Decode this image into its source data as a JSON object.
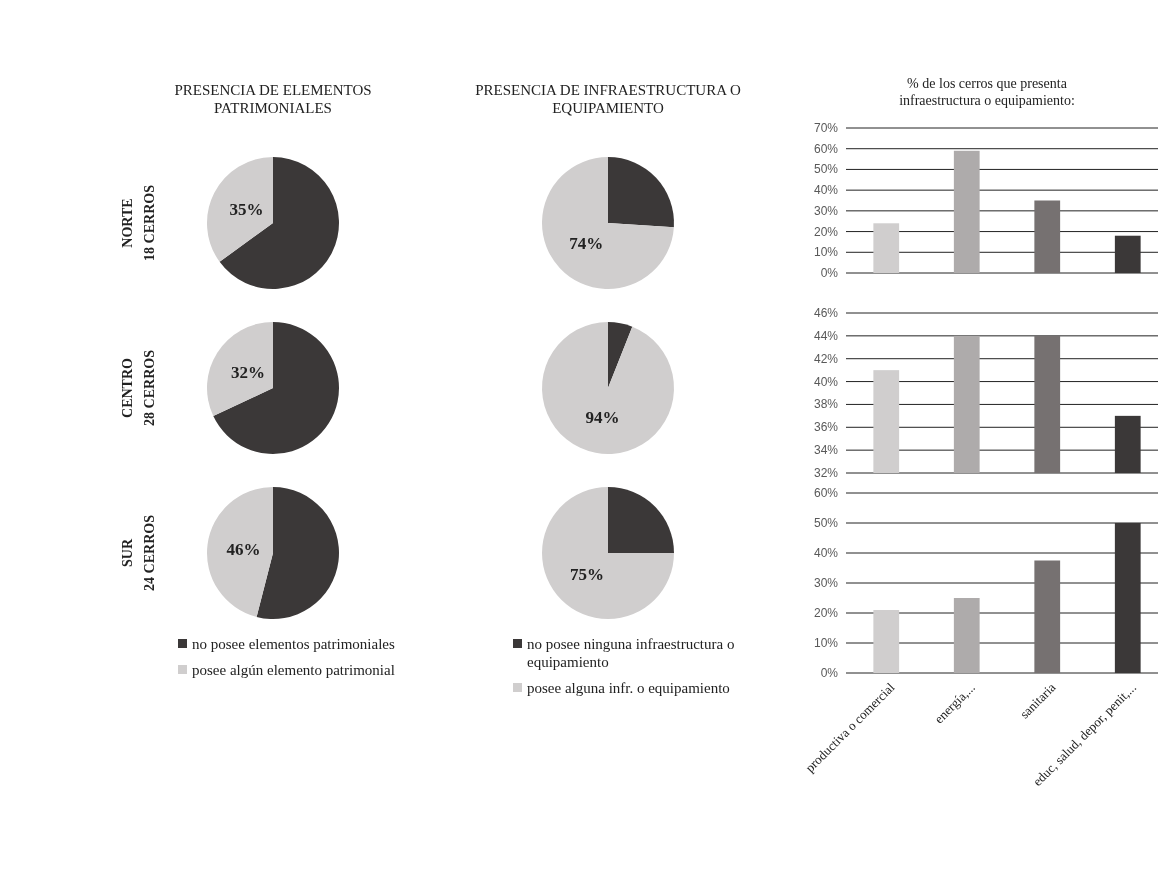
{
  "chart_data": [
    {
      "type": "pie",
      "title": "PRESENCIA DE ELEMENTOS PATRIMONIALES",
      "ylabel": "NORTE\n18 CERROS",
      "categories": [
        null,
        null
      ],
      "values": [
        65,
        35
      ],
      "colors": [
        "#3b3838",
        "#d0cece"
      ],
      "value_labels": [
        null,
        "35%"
      ],
      "legend": false
    },
    {
      "type": "pie",
      "title": "PRESENCIA DE INFRAESTRUCTURA  O EQUIPAMIENTO",
      "categories": [
        null,
        null
      ],
      "values": [
        26,
        74
      ],
      "colors": [
        "#3b3838",
        "#d0cece"
      ],
      "value_labels": [
        null,
        "74%"
      ],
      "legend": false
    },
    {
      "type": "bar",
      "title": "% de los cerros que presenta infraestructura  o equipamiento:",
      "categories": [
        null,
        null,
        null,
        null
      ],
      "values": [
        24,
        59,
        35,
        18
      ],
      "colors": [
        "#d0cece",
        "#aeabab",
        "#767171",
        "#3b3838"
      ],
      "ylim": [
        0,
        70
      ],
      "yticks": [
        {
          "value": 0,
          "label": "0%"
        },
        {
          "value": 10,
          "label": "10%"
        },
        {
          "value": 20,
          "label": "20%"
        },
        {
          "value": 30,
          "label": "30%"
        },
        {
          "value": 40,
          "label": "40%"
        },
        {
          "value": 50,
          "label": "50%"
        },
        {
          "value": 60,
          "label": "60%"
        },
        {
          "value": 70,
          "label": "70%"
        }
      ],
      "grid": "y",
      "tick_labels": "y"
    },
    {
      "type": "pie",
      "ylabel": "CENTRO\n28 CERROS",
      "categories": [
        null,
        null
      ],
      "values": [
        68,
        32
      ],
      "colors": [
        "#3b3838",
        "#d0cece"
      ],
      "value_labels": [
        null,
        "32%"
      ],
      "legend": false
    },
    {
      "type": "pie",
      "categories": [
        null,
        null
      ],
      "values": [
        6,
        94
      ],
      "colors": [
        "#3b3838",
        "#d0cece"
      ],
      "value_labels": [
        null,
        "94%"
      ],
      "legend": false
    },
    {
      "type": "bar",
      "categories": [
        null,
        null,
        null,
        null
      ],
      "values": [
        41,
        44,
        44,
        37
      ],
      "colors": [
        "#d0cece",
        "#aeabab",
        "#767171",
        "#3b3838"
      ],
      "ylim": [
        32,
        46
      ],
      "yticks": [
        {
          "value": 32,
          "label": "32%"
        },
        {
          "value": 34,
          "label": "34%"
        },
        {
          "value": 36,
          "label": "36%"
        },
        {
          "value": 38,
          "label": "38%"
        },
        {
          "value": 40,
          "label": "40%"
        },
        {
          "value": 42,
          "label": "42%"
        },
        {
          "value": 44,
          "label": "44%"
        },
        {
          "value": 46,
          "label": "46%"
        }
      ],
      "grid": "y",
      "tick_labels": "y"
    },
    {
      "type": "pie",
      "ylabel": "SUR\n24 CERROS",
      "categories": [
        "no posee elementos patrimoniales",
        "posee algún elemento patrimonial"
      ],
      "values": [
        54,
        46
      ],
      "colors": [
        "#3b3838",
        "#d0cece"
      ],
      "value_labels": [
        null,
        "46%"
      ],
      "legend": "bottom"
    },
    {
      "type": "pie",
      "categories": [
        "no posee ninguna infraestructura o equipamiento",
        "posee alguna infr. o equipamiento"
      ],
      "values": [
        25,
        75
      ],
      "colors": [
        "#3b3838",
        "#d0cece"
      ],
      "value_labels": [
        null,
        "75%"
      ],
      "legend": "bottom"
    },
    {
      "type": "bar",
      "categories": [
        "productiva o comercial",
        "energía,...",
        "sanitaria",
        "educ, salud, depor, penit,..."
      ],
      "values": [
        21,
        25,
        37.5,
        50
      ],
      "colors": [
        "#d0cece",
        "#aeabab",
        "#767171",
        "#3b3838"
      ],
      "ylim": [
        0,
        60
      ],
      "yticks": [
        {
          "value": 0,
          "label": "0%"
        },
        {
          "value": 10,
          "label": "10%"
        },
        {
          "value": 20,
          "label": "20%"
        },
        {
          "value": 30,
          "label": "30%"
        },
        {
          "value": 40,
          "label": "40%"
        },
        {
          "value": 50,
          "label": "50%"
        },
        {
          "value": 60,
          "label": "60%"
        }
      ],
      "grid": "y"
    }
  ]
}
